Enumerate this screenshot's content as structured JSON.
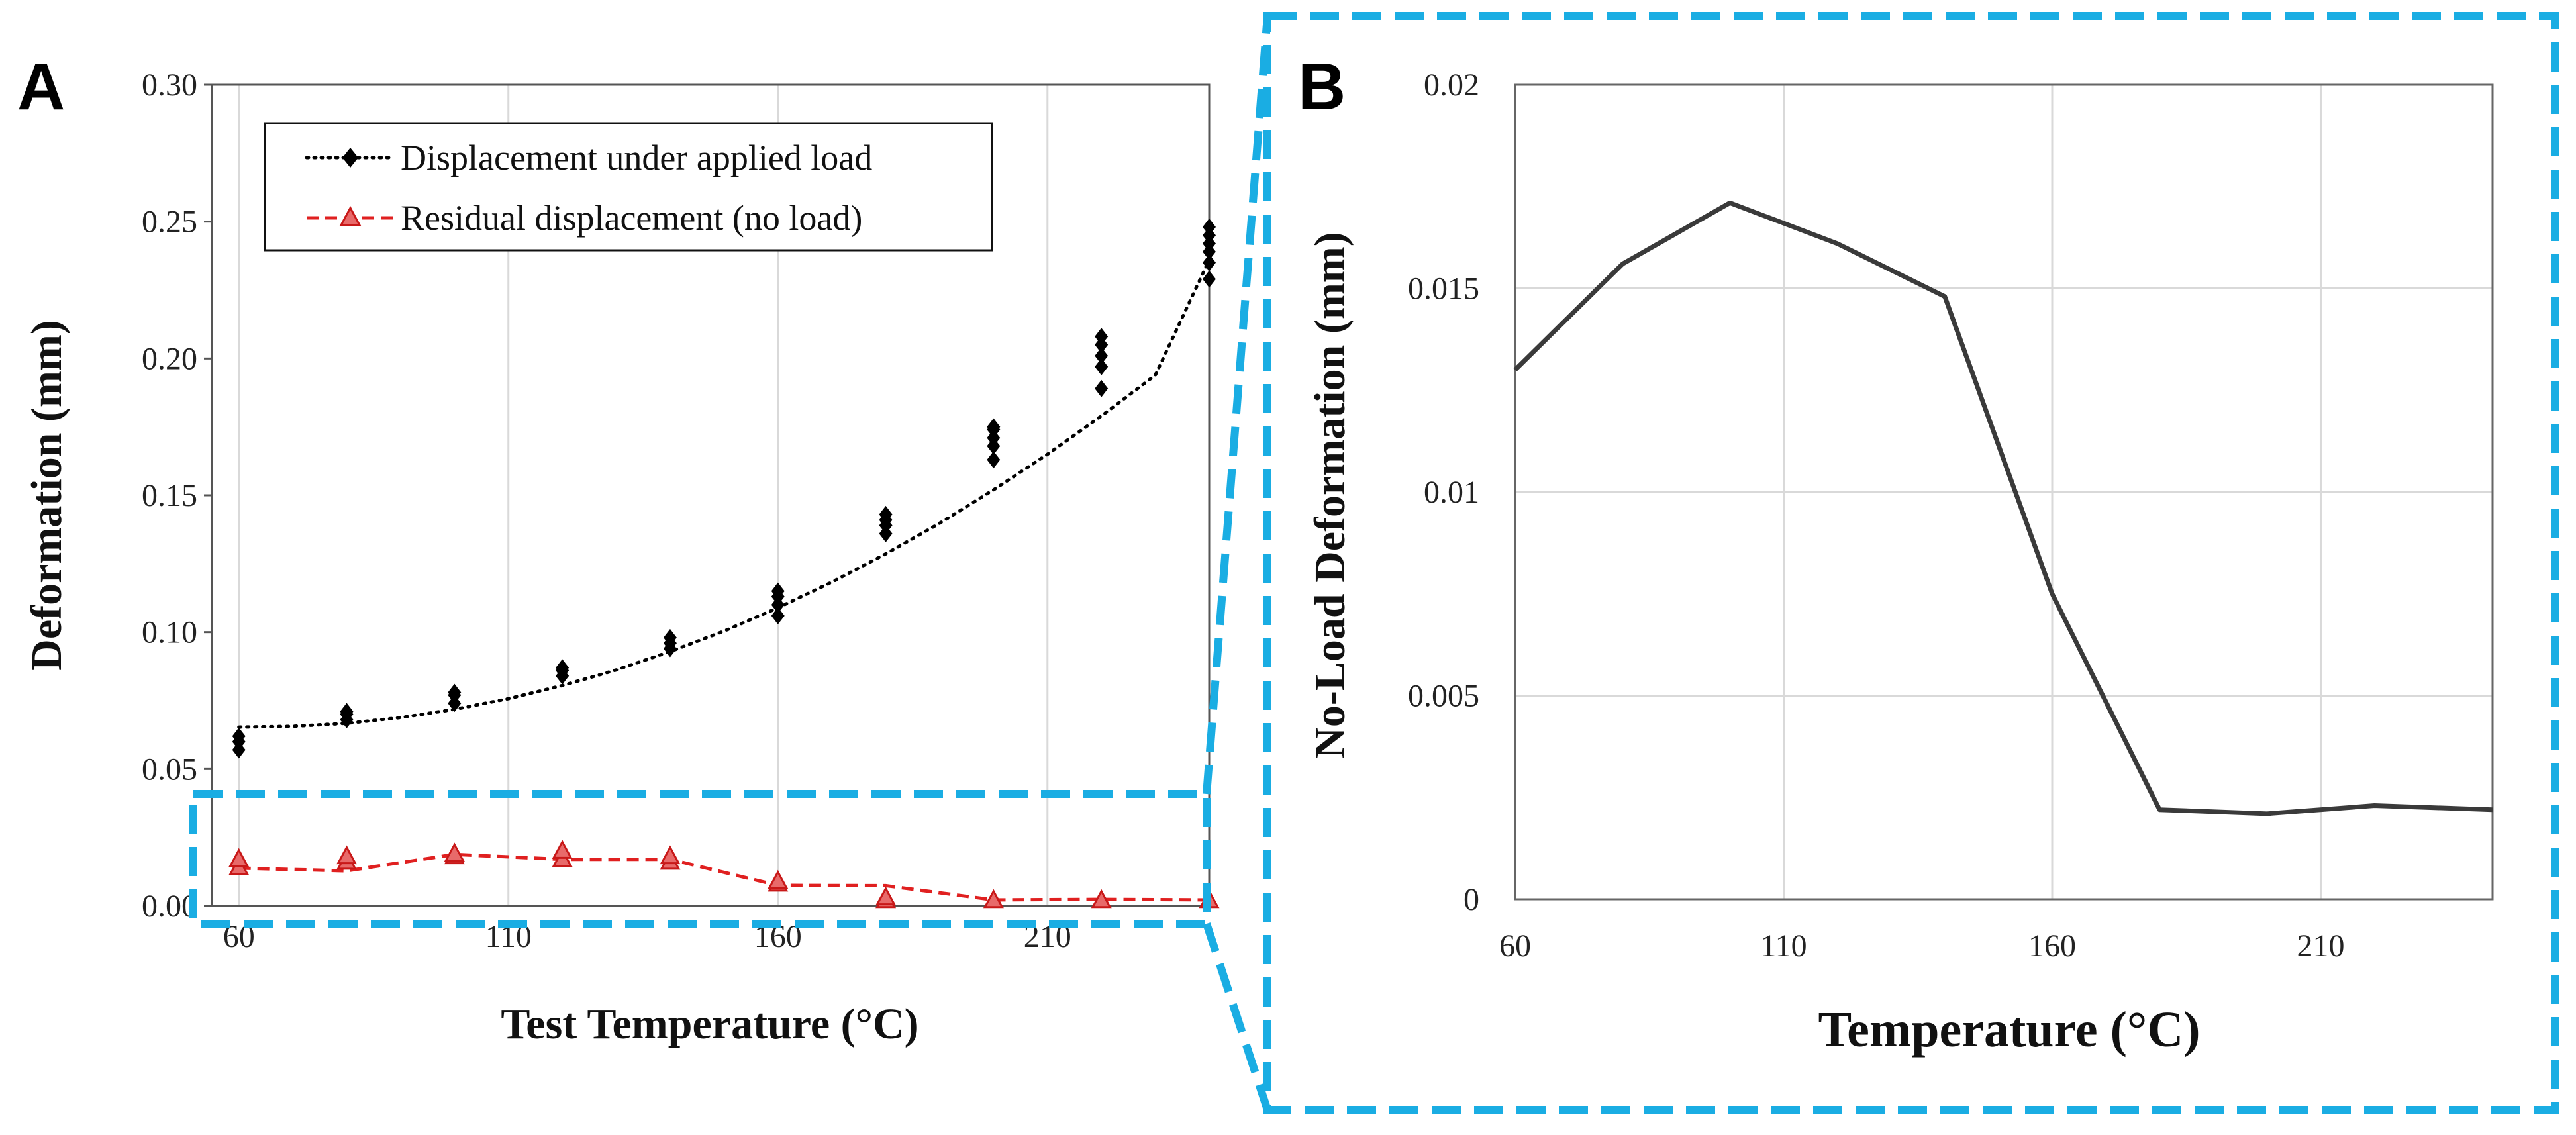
{
  "colors": {
    "highlight": "#1aade3",
    "loaded": "#000000",
    "residual": "#e02020",
    "zoom_line": "#3a3a3a",
    "grid": "#d9d9d9"
  },
  "chart_data": [
    {
      "panel": "A",
      "type": "scatter",
      "xlabel": "Test Temperature (°C)",
      "ylabel": "Deformation (mm)",
      "xlim": [
        55,
        240
      ],
      "ylim": [
        0,
        0.3
      ],
      "x_ticks": [
        60,
        110,
        160,
        210
      ],
      "x_tick_labels": [
        "60",
        "110",
        "160",
        "210"
      ],
      "y_ticks": [
        0,
        0.05,
        0.1,
        0.15,
        0.2,
        0.25,
        0.3
      ],
      "y_tick_labels": [
        "0.00",
        "0.05",
        "0.10",
        "0.15",
        "0.20",
        "0.25",
        "0.30"
      ],
      "grid": "vertical",
      "legend_position": "top-left",
      "series": [
        {
          "name": "Displacement under applied load",
          "marker": "diamond",
          "line": "dotted",
          "x": [
            60,
            60,
            60,
            80,
            80,
            80,
            100,
            100,
            100,
            120,
            120,
            120,
            140,
            140,
            140,
            160,
            160,
            160,
            160,
            180,
            180,
            180,
            180,
            200,
            200,
            200,
            200,
            200,
            220,
            220,
            220,
            220,
            220,
            240,
            240,
            240,
            240,
            240,
            240
          ],
          "y": [
            0.057,
            0.06,
            0.062,
            0.068,
            0.07,
            0.071,
            0.074,
            0.077,
            0.078,
            0.084,
            0.086,
            0.087,
            0.094,
            0.096,
            0.098,
            0.106,
            0.11,
            0.113,
            0.115,
            0.136,
            0.139,
            0.141,
            0.143,
            0.163,
            0.168,
            0.171,
            0.174,
            0.175,
            0.189,
            0.197,
            0.201,
            0.205,
            0.208,
            0.229,
            0.235,
            0.239,
            0.242,
            0.245,
            0.248
          ],
          "trend_x": [
            60,
            70,
            80,
            90,
            100,
            110,
            120,
            130,
            140,
            150,
            160,
            170,
            180,
            190,
            200,
            210,
            220,
            230,
            240
          ],
          "trend_y": [
            0.0653,
            0.0656,
            0.0667,
            0.0688,
            0.0718,
            0.0757,
            0.0805,
            0.0862,
            0.0929,
            0.1004,
            0.1089,
            0.1183,
            0.1286,
            0.1398,
            0.152,
            0.165,
            0.179,
            0.1939,
            0.236
          ]
        },
        {
          "name": "Residual displacement (no load)",
          "marker": "triangle",
          "line": "dashed",
          "x": [
            60,
            60,
            80,
            80,
            100,
            100,
            120,
            120,
            140,
            140,
            160,
            160,
            180,
            180,
            200,
            220,
            240
          ],
          "y": [
            0.014,
            0.017,
            0.016,
            0.018,
            0.018,
            0.019,
            0.017,
            0.02,
            0.016,
            0.018,
            0.008,
            0.009,
            0.002,
            0.003,
            0.002,
            0.002,
            0.002
          ],
          "line_x": [
            60,
            80,
            100,
            120,
            140,
            160,
            180,
            200,
            220,
            240
          ],
          "line_y": [
            0.0138,
            0.0128,
            0.0188,
            0.017,
            0.017,
            0.0075,
            0.0074,
            0.0022,
            0.0024,
            0.0022
          ]
        }
      ]
    },
    {
      "panel": "B",
      "type": "line",
      "xlabel": "Temperature (°C)",
      "ylabel": "No-Load Deformation (mm)",
      "xlim": [
        60,
        242
      ],
      "ylim": [
        0,
        0.02
      ],
      "x_ticks": [
        60,
        110,
        160,
        210
      ],
      "x_tick_labels": [
        "60",
        "110",
        "160",
        "210"
      ],
      "y_ticks": [
        0,
        0.005,
        0.01,
        0.015,
        0.02
      ],
      "y_tick_labels": [
        "0",
        "0.005",
        "0.01",
        "0.015",
        "0.02"
      ],
      "grid": "both",
      "series": [
        {
          "name": "No-Load Deformation",
          "x": [
            60,
            80,
            100,
            120,
            140,
            160,
            180,
            200,
            220,
            242
          ],
          "y": [
            0.013,
            0.0156,
            0.0171,
            0.0161,
            0.0148,
            0.0075,
            0.0022,
            0.0021,
            0.0023,
            0.0022
          ]
        }
      ]
    }
  ]
}
